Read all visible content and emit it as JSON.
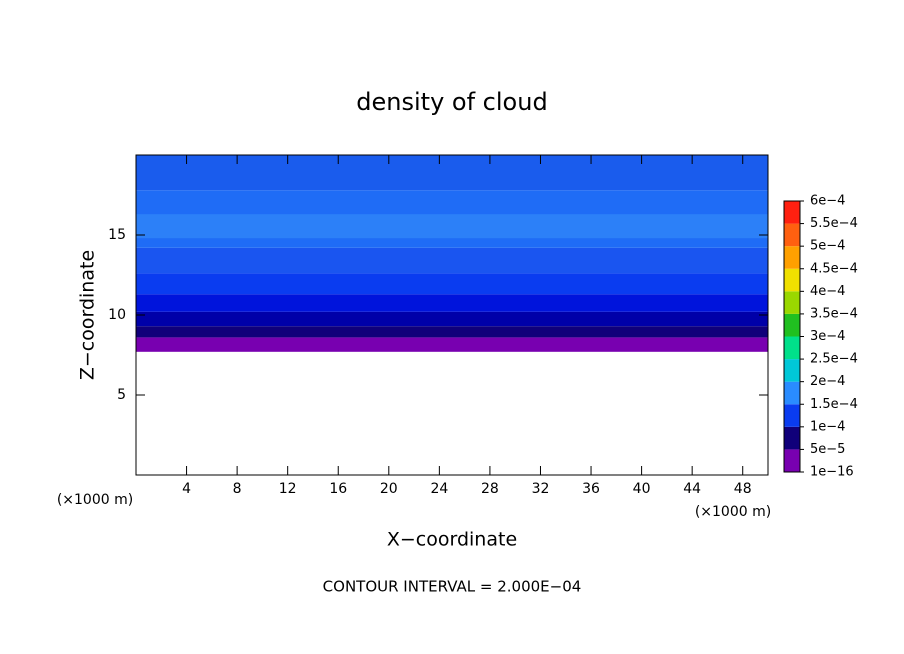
{
  "chart_data": {
    "type": "contour",
    "title": "density of cloud",
    "x_label": "X−coordinate",
    "y_label": "Z−coordinate",
    "x_unit_left": "(×1000 m)",
    "x_unit_right": "(×1000 m)",
    "footer": "CONTOUR INTERVAL = 2.000E−04",
    "xlim": [
      0,
      50
    ],
    "ylim": [
      0,
      20
    ],
    "xticks": [
      4,
      8,
      12,
      16,
      20,
      24,
      28,
      32,
      36,
      40,
      44,
      48
    ],
    "yticks": [
      5,
      10,
      15
    ],
    "layers": [
      {
        "zlim": [
          7.7,
          8.6
        ],
        "color": "#7800b0"
      },
      {
        "zlim": [
          8.6,
          9.3
        ],
        "color": "#10007a"
      },
      {
        "zlim": [
          9.3,
          10.2
        ],
        "color": "#0000a8"
      },
      {
        "zlim": [
          10.2,
          11.3
        ],
        "color": "#0014dc"
      },
      {
        "zlim": [
          11.3,
          12.6
        ],
        "color": "#0a3cf0"
      },
      {
        "zlim": [
          12.6,
          14.2
        ],
        "color": "#1a55f0"
      },
      {
        "zlim": [
          14.2,
          17.8
        ],
        "color": "#1f6cf6"
      },
      {
        "zlim": [
          14.8,
          16.3
        ],
        "color": "#2c80f8"
      },
      {
        "zlim": [
          17.8,
          20
        ],
        "color": "#1a5ced"
      }
    ],
    "clim": [
      1e-16,
      0.0006
    ],
    "colorbar_colors": [
      "#7800b0",
      "#10007a",
      "#0a3cf0",
      "#2a8cff",
      "#00c8d8",
      "#00e08a",
      "#20c020",
      "#9ad800",
      "#f0e000",
      "#ffa000",
      "#ff6010",
      "#ff2010"
    ],
    "colorbar_ticks": [
      {
        "value": 1e-16,
        "label": "1e−16"
      },
      {
        "value": 5e-05,
        "label": "5e−5"
      },
      {
        "value": 0.0001,
        "label": "1e−4"
      },
      {
        "value": 0.00015,
        "label": "1.5e−4"
      },
      {
        "value": 0.0002,
        "label": "2e−4"
      },
      {
        "value": 0.00025,
        "label": "2.5e−4"
      },
      {
        "value": 0.0003,
        "label": "3e−4"
      },
      {
        "value": 0.00035,
        "label": "3.5e−4"
      },
      {
        "value": 0.0004,
        "label": "4e−4"
      },
      {
        "value": 0.00045,
        "label": "4.5e−4"
      },
      {
        "value": 0.0005,
        "label": "5e−4"
      },
      {
        "value": 0.00055,
        "label": "5.5e−4"
      },
      {
        "value": 0.0006,
        "label": "6e−4"
      }
    ]
  }
}
